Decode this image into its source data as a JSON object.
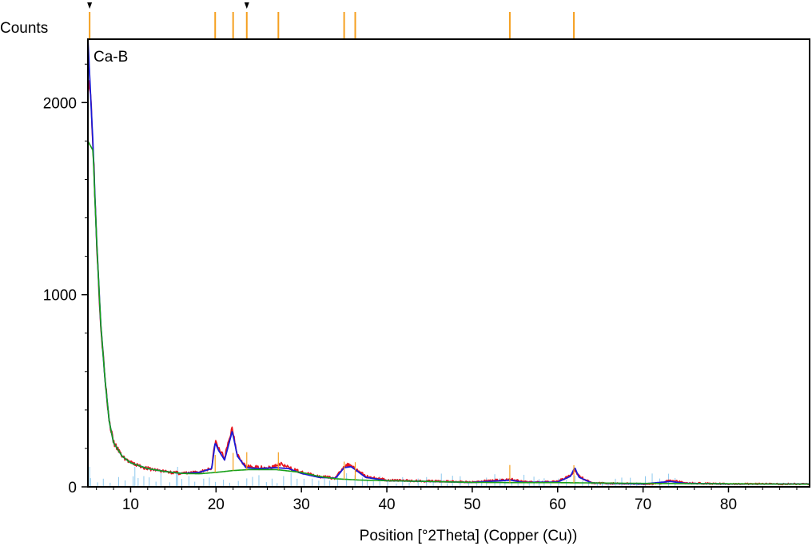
{
  "chart_data": {
    "type": "line",
    "ylabel": "Counts",
    "xlabel": "Position [°2Theta] (Copper (Cu))",
    "sample_label": "Ca-B",
    "xlim": [
      5,
      89.5
    ],
    "ylim": [
      0,
      2330
    ],
    "x_ticks": [
      10,
      20,
      30,
      40,
      50,
      60,
      70,
      80
    ],
    "y_ticks": [
      0,
      1000,
      2000
    ],
    "grid": false,
    "colors": {
      "observed": "#e8141c",
      "calculated": "#1a1ad6",
      "background": "#18a018",
      "reference": "#f5a020",
      "sticks": "#8cc8ee",
      "frame": "#000000"
    },
    "series": [
      {
        "role": "observed",
        "x": [
          5.0,
          5.3,
          5.6,
          6.0,
          6.5,
          7.0,
          7.5,
          8.0,
          9.0,
          10.0,
          12.0,
          14.0,
          16.0,
          18.0,
          19.5,
          19.9,
          20.3,
          21.0,
          21.9,
          22.5,
          23.5,
          25.0,
          26.5,
          27.5,
          28.5,
          30.0,
          32.0,
          34.0,
          35.0,
          35.8,
          36.3,
          37.5,
          40.0,
          45.0,
          50.0,
          54.5,
          56.0,
          60.0,
          61.5,
          62.0,
          62.5,
          64.0,
          70.0,
          72.0,
          73.2,
          75.0,
          80.0,
          85.0,
          89.5
        ],
        "y": [
          2150,
          2050,
          1800,
          1300,
          850,
          560,
          340,
          230,
          160,
          125,
          95,
          80,
          70,
          75,
          100,
          240,
          200,
          150,
          310,
          170,
          105,
          100,
          100,
          120,
          100,
          75,
          55,
          45,
          110,
          115,
          95,
          55,
          35,
          30,
          25,
          40,
          25,
          28,
          60,
          90,
          55,
          20,
          15,
          18,
          35,
          20,
          15,
          15,
          15
        ]
      },
      {
        "role": "calculated",
        "x": [
          5.0,
          5.3,
          5.6,
          6.0,
          6.5,
          7.0,
          7.5,
          8.0,
          9.0,
          10.0,
          12.0,
          14.0,
          16.0,
          18.0,
          19.5,
          19.9,
          20.3,
          21.0,
          21.9,
          22.5,
          23.5,
          25.0,
          27.0,
          28.5,
          30.0,
          32.0,
          34.0,
          35.0,
          35.8,
          36.3,
          37.5,
          40.0,
          45.0,
          50.0,
          54.5,
          56.0,
          60.0,
          61.5,
          62.0,
          62.5,
          64.0,
          70.0,
          73.2,
          75.0,
          80.0,
          89.5
        ],
        "y": [
          2330,
          2050,
          1780,
          1300,
          850,
          560,
          340,
          230,
          160,
          125,
          95,
          80,
          70,
          75,
          95,
          230,
          190,
          140,
          290,
          160,
          100,
          95,
          100,
          95,
          70,
          50,
          45,
          100,
          105,
          90,
          50,
          32,
          28,
          23,
          35,
          23,
          25,
          55,
          100,
          50,
          20,
          15,
          28,
          18,
          15,
          15
        ]
      },
      {
        "role": "background",
        "x": [
          5.0,
          5.6,
          6.0,
          6.5,
          7.0,
          7.5,
          8.0,
          9.0,
          10.0,
          12.0,
          14.0,
          16.0,
          18.0,
          20.0,
          22.0,
          24.0,
          27.0,
          30.0,
          32.0,
          34.0,
          37.0,
          40.0,
          45.0,
          50.0,
          55.0,
          60.0,
          65.0,
          70.0,
          75.0,
          80.0,
          85.0,
          89.5
        ],
        "y": [
          1800,
          1750,
          1300,
          850,
          560,
          340,
          230,
          160,
          125,
          95,
          80,
          70,
          68,
          75,
          85,
          90,
          90,
          75,
          55,
          42,
          35,
          32,
          28,
          23,
          22,
          22,
          20,
          18,
          17,
          16,
          15,
          14
        ]
      }
    ],
    "reference_peaks": [
      5.2,
      19.9,
      22.0,
      23.6,
      27.3,
      35.0,
      36.3,
      54.4,
      61.9
    ],
    "marked_peaks": [
      5.2,
      23.6
    ]
  }
}
